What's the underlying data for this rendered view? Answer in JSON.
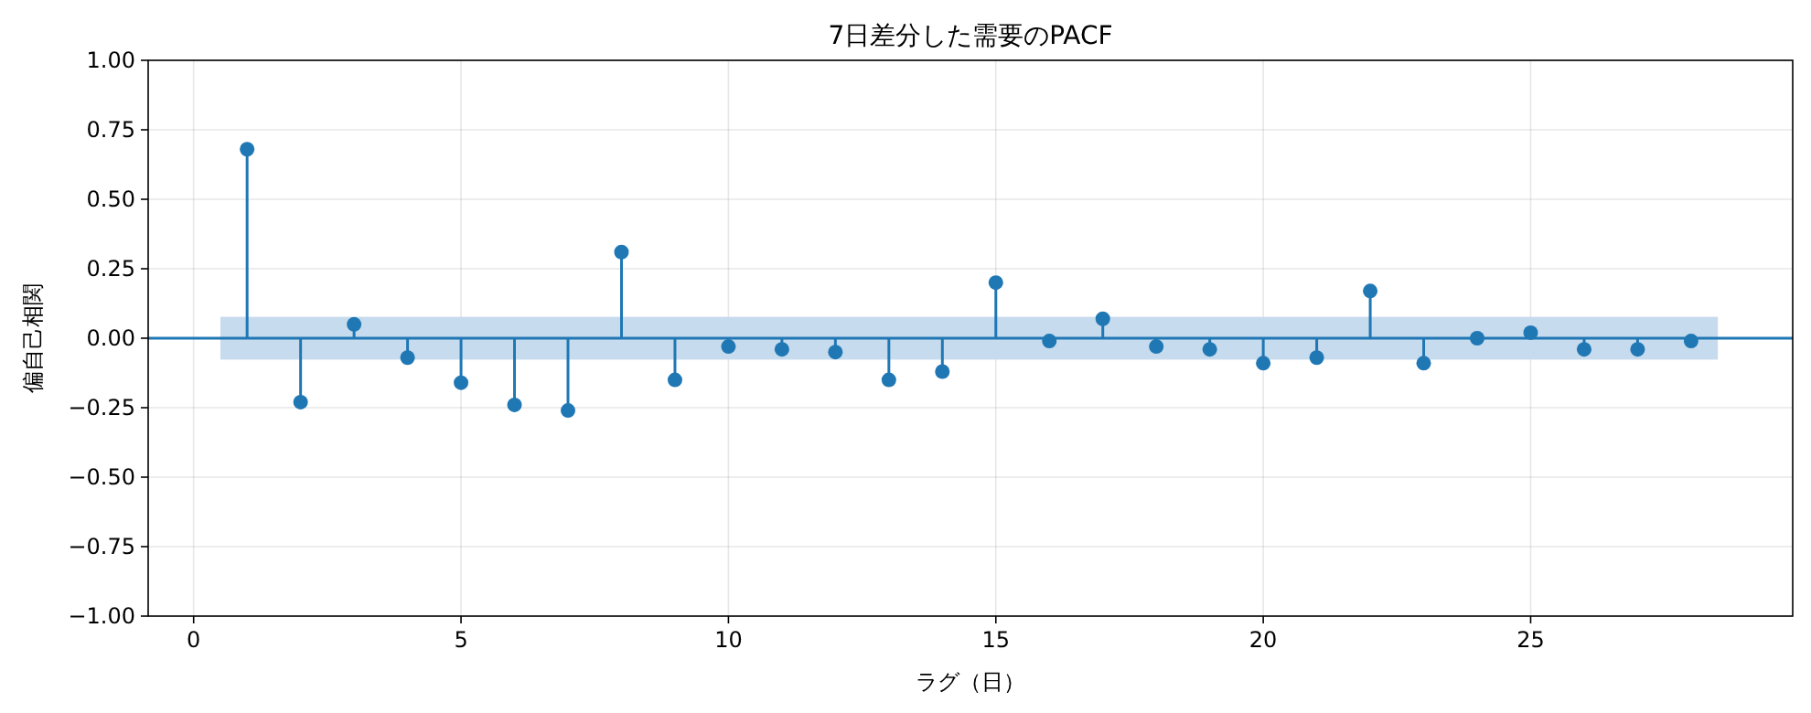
{
  "chart_data": {
    "type": "lollipop",
    "title": "7日差分した需要のPACF",
    "xlabel": "ラグ（日）",
    "ylabel": "偏自己相関",
    "x": [
      1,
      2,
      3,
      4,
      5,
      6,
      7,
      8,
      9,
      10,
      11,
      12,
      13,
      14,
      15,
      16,
      17,
      18,
      19,
      20,
      21,
      22,
      23,
      24,
      25,
      26,
      27,
      28
    ],
    "series": [
      {
        "color": "#1f77b4",
        "values": [
          0.68,
          -0.23,
          0.05,
          -0.07,
          -0.16,
          -0.24,
          -0.26,
          0.31,
          -0.15,
          -0.03,
          -0.04,
          -0.05,
          -0.15,
          -0.12,
          0.2,
          -0.01,
          0.07,
          -0.03,
          -0.04,
          -0.09,
          -0.07,
          0.17,
          -0.09,
          0.0,
          0.02,
          -0.04,
          -0.04,
          -0.01
        ]
      }
    ],
    "xlim": [
      -0.85,
      29.9
    ],
    "xticks": [
      0,
      5,
      10,
      15,
      20,
      25
    ],
    "ylim": [
      -1,
      1
    ],
    "yticks": [
      {
        "value": -1,
        "label": "−1.00"
      },
      {
        "value": -0.75,
        "label": "−0.75"
      },
      {
        "value": -0.5,
        "label": "−0.50"
      },
      {
        "value": -0.25,
        "label": "−0.25"
      },
      {
        "value": 0,
        "label": "0.00"
      },
      {
        "value": 0.25,
        "label": "0.25"
      },
      {
        "value": 0.5,
        "label": "0.50"
      },
      {
        "value": 0.75,
        "label": "0.75"
      },
      {
        "value": 1,
        "label": "1.00"
      }
    ],
    "ref_lines": [
      {
        "axis": "y",
        "value": 0,
        "color": "#1f77b4"
      }
    ],
    "bands": [
      {
        "axis": "y",
        "from": -0.077,
        "to": 0.077,
        "color": "#c6dbed"
      }
    ],
    "grid": true,
    "marker": "circle"
  }
}
